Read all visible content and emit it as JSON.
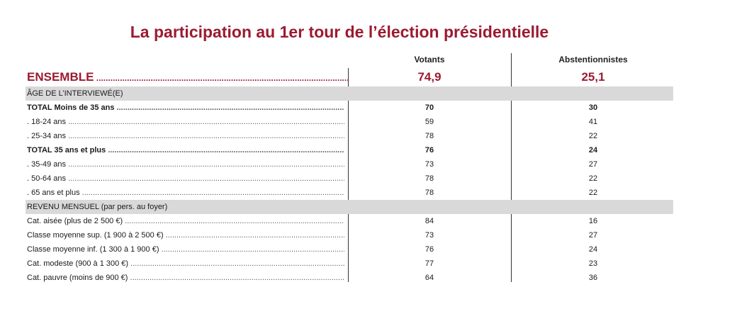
{
  "title": "La participation au 1er tour de l’élection présidentielle",
  "columns": {
    "votants": "Votants",
    "abstentionnistes": "Abstentionnistes"
  },
  "ensemble": {
    "label": "ENSEMBLE",
    "votants": "74,9",
    "abstentionnistes": "25,1"
  },
  "sections": [
    {
      "heading": "ÂGE DE L’INTERVIEWÉ(E)",
      "rows": [
        {
          "label": "TOTAL Moins de 35 ans",
          "votants": "70",
          "abstentionnistes": "30",
          "bold": true
        },
        {
          "label": ". 18-24 ans",
          "votants": "59",
          "abstentionnistes": "41",
          "bold": false
        },
        {
          "label": ". 25-34 ans",
          "votants": "78",
          "abstentionnistes": "22",
          "bold": false
        },
        {
          "label": "TOTAL 35 ans et plus",
          "votants": "76",
          "abstentionnistes": "24",
          "bold": true
        },
        {
          "label": ". 35-49 ans",
          "votants": "73",
          "abstentionnistes": "27",
          "bold": false
        },
        {
          "label": ". 50-64 ans",
          "votants": "78",
          "abstentionnistes": "22",
          "bold": false
        },
        {
          "label": ". 65 ans et plus",
          "votants": "78",
          "abstentionnistes": "22",
          "bold": false
        }
      ]
    },
    {
      "heading": "REVENU MENSUEL (par pers. au foyer)",
      "rows": [
        {
          "label": "Cat. aisée (plus de 2 500 €)",
          "votants": "84",
          "abstentionnistes": "16",
          "bold": false
        },
        {
          "label": "Classe moyenne sup. (1 900 à 2 500 €)",
          "votants": "73",
          "abstentionnistes": "27",
          "bold": false
        },
        {
          "label": "Classe moyenne inf. (1 300 à 1 900 €)",
          "votants": "76",
          "abstentionnistes": "24",
          "bold": false
        },
        {
          "label": "Cat. modeste (900 à 1 300 €)",
          "votants": "77",
          "abstentionnistes": "23",
          "bold": false
        },
        {
          "label": "Cat. pauvre (moins de 900 €)",
          "votants": "64",
          "abstentionnistes": "36",
          "bold": false
        }
      ]
    }
  ],
  "colors": {
    "accent": "#9b1b30",
    "section_bg": "#d9d9d9"
  }
}
